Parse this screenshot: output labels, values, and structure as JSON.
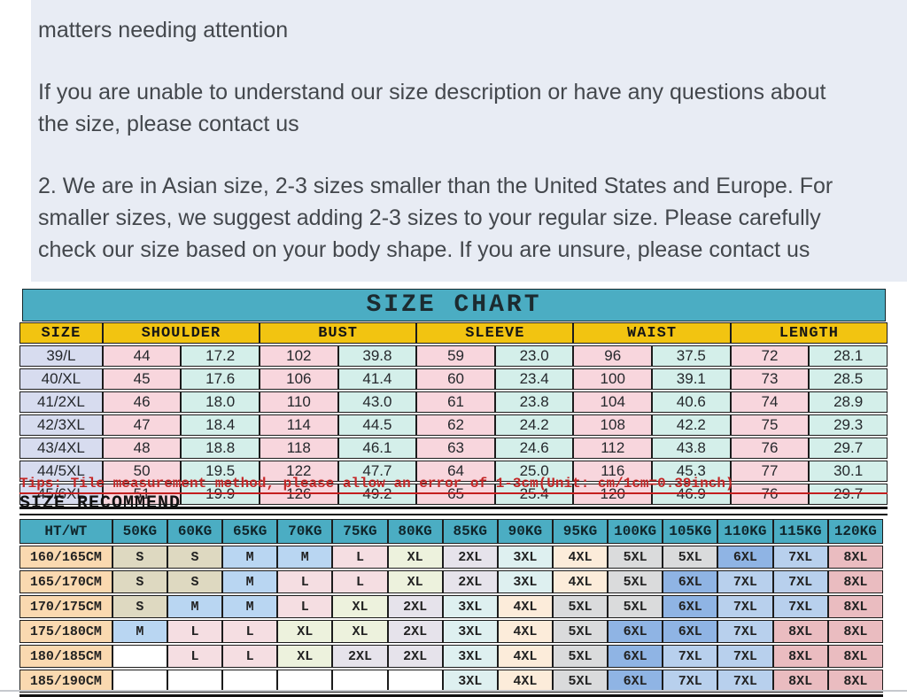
{
  "notes": {
    "title": "matters needing attention",
    "para1_line1": "If you are unable to understand our size description or have any questions about",
    "para1_line2": "the size, please contact us",
    "para2_line1": "2. We are in Asian size, 2-3 sizes smaller than the United States and Europe. For",
    "para2_line2": "smaller sizes, we suggest adding 2-3 sizes to your regular size. Please carefully",
    "para2_line3": "check our size based on your body shape. If you are unsure, please contact us"
  },
  "size_chart": {
    "title": "SIZE CHART",
    "columns": [
      "SIZE",
      "SHOULDER",
      "BUST",
      "SLEEVE",
      "WAIST",
      "LENGTH"
    ],
    "rows": [
      {
        "size": "39/L",
        "values": [
          "44",
          "17.2",
          "102",
          "39.8",
          "59",
          "23.0",
          "96",
          "37.5",
          "72",
          "28.1"
        ]
      },
      {
        "size": "40/XL",
        "values": [
          "45",
          "17.6",
          "106",
          "41.4",
          "60",
          "23.4",
          "100",
          "39.1",
          "73",
          "28.5"
        ]
      },
      {
        "size": "41/2XL",
        "values": [
          "46",
          "18.0",
          "110",
          "43.0",
          "61",
          "23.8",
          "104",
          "40.6",
          "74",
          "28.9"
        ]
      },
      {
        "size": "42/3XL",
        "values": [
          "47",
          "18.4",
          "114",
          "44.5",
          "62",
          "24.2",
          "108",
          "42.2",
          "75",
          "29.3"
        ]
      },
      {
        "size": "43/4XL",
        "values": [
          "48",
          "18.8",
          "118",
          "46.1",
          "63",
          "24.6",
          "112",
          "43.8",
          "76",
          "29.7"
        ]
      },
      {
        "size": "44/5XL",
        "values": [
          "50",
          "19.5",
          "122",
          "47.7",
          "64",
          "25.0",
          "116",
          "45.3",
          "77",
          "30.1"
        ]
      },
      {
        "size": "45/6XL",
        "values": [
          "51",
          "19.9",
          "126",
          "49.2",
          "65",
          "25.4",
          "120",
          "46.9",
          "76",
          "29.7"
        ]
      }
    ],
    "tips": "Tips: Tile measurement method, please allow an error of 1-3cm(Unit: cm/1cm=0.39inch)"
  },
  "size_recommend": {
    "title": "SIZE RECOMMEND",
    "corner": "HT/WT",
    "weights": [
      "50KG",
      "60KG",
      "65KG",
      "70KG",
      "75KG",
      "80KG",
      "85KG",
      "90KG",
      "95KG",
      "100KG",
      "105KG",
      "110KG",
      "115KG",
      "120KG"
    ],
    "rows": [
      {
        "height": "160/165CM",
        "sizes": [
          "S",
          "S",
          "M",
          "M",
          "L",
          "XL",
          "2XL",
          "3XL",
          "4XL",
          "5XL",
          "5XL",
          "6XL",
          "7XL",
          "8XL"
        ]
      },
      {
        "height": "165/170CM",
        "sizes": [
          "S",
          "S",
          "M",
          "L",
          "L",
          "XL",
          "2XL",
          "3XL",
          "4XL",
          "5XL",
          "6XL",
          "7XL",
          "7XL",
          "8XL"
        ]
      },
      {
        "height": "170/175CM",
        "sizes": [
          "S",
          "M",
          "M",
          "L",
          "XL",
          "2XL",
          "3XL",
          "4XL",
          "5XL",
          "5XL",
          "6XL",
          "7XL",
          "7XL",
          "8XL"
        ]
      },
      {
        "height": "175/180CM",
        "sizes": [
          "M",
          "L",
          "L",
          "XL",
          "XL",
          "2XL",
          "3XL",
          "4XL",
          "5XL",
          "6XL",
          "6XL",
          "7XL",
          "8XL",
          "8XL"
        ]
      },
      {
        "height": "180/185CM",
        "sizes": [
          "",
          "L",
          "L",
          "XL",
          "2XL",
          "2XL",
          "3XL",
          "4XL",
          "5XL",
          "6XL",
          "7XL",
          "7XL",
          "8XL",
          "8XL"
        ]
      },
      {
        "height": "185/190CM",
        "sizes": [
          "",
          "",
          "",
          "",
          "",
          "",
          "3XL",
          "4XL",
          "5XL",
          "6XL",
          "7XL",
          "7XL",
          "8XL",
          "8XL"
        ]
      }
    ]
  },
  "colors": {
    "note_bg": "#e8ecf4",
    "banner_teal": "#4badc3",
    "header_yellow": "#f2c411",
    "size_col": "#d7dcef",
    "cm_col": "#f8d6dd",
    "inch_col": "#d4efea",
    "height_col": "#fad9b0",
    "tips_red": "#c42727",
    "size_cell_colors": {
      "S": "#ded9c1",
      "M": "#b9d6f2",
      "L": "#f5dee2",
      "XL": "#edf2dd",
      "2XL": "#e6e3eb",
      "3XL": "#def0f0",
      "4XL": "#fcecda",
      "5XL": "#dadbdc",
      "6XL": "#8fb4e4",
      "7XL": "#b8d0ed",
      "8XL": "#eabcc0",
      "": "#ffffff"
    }
  }
}
